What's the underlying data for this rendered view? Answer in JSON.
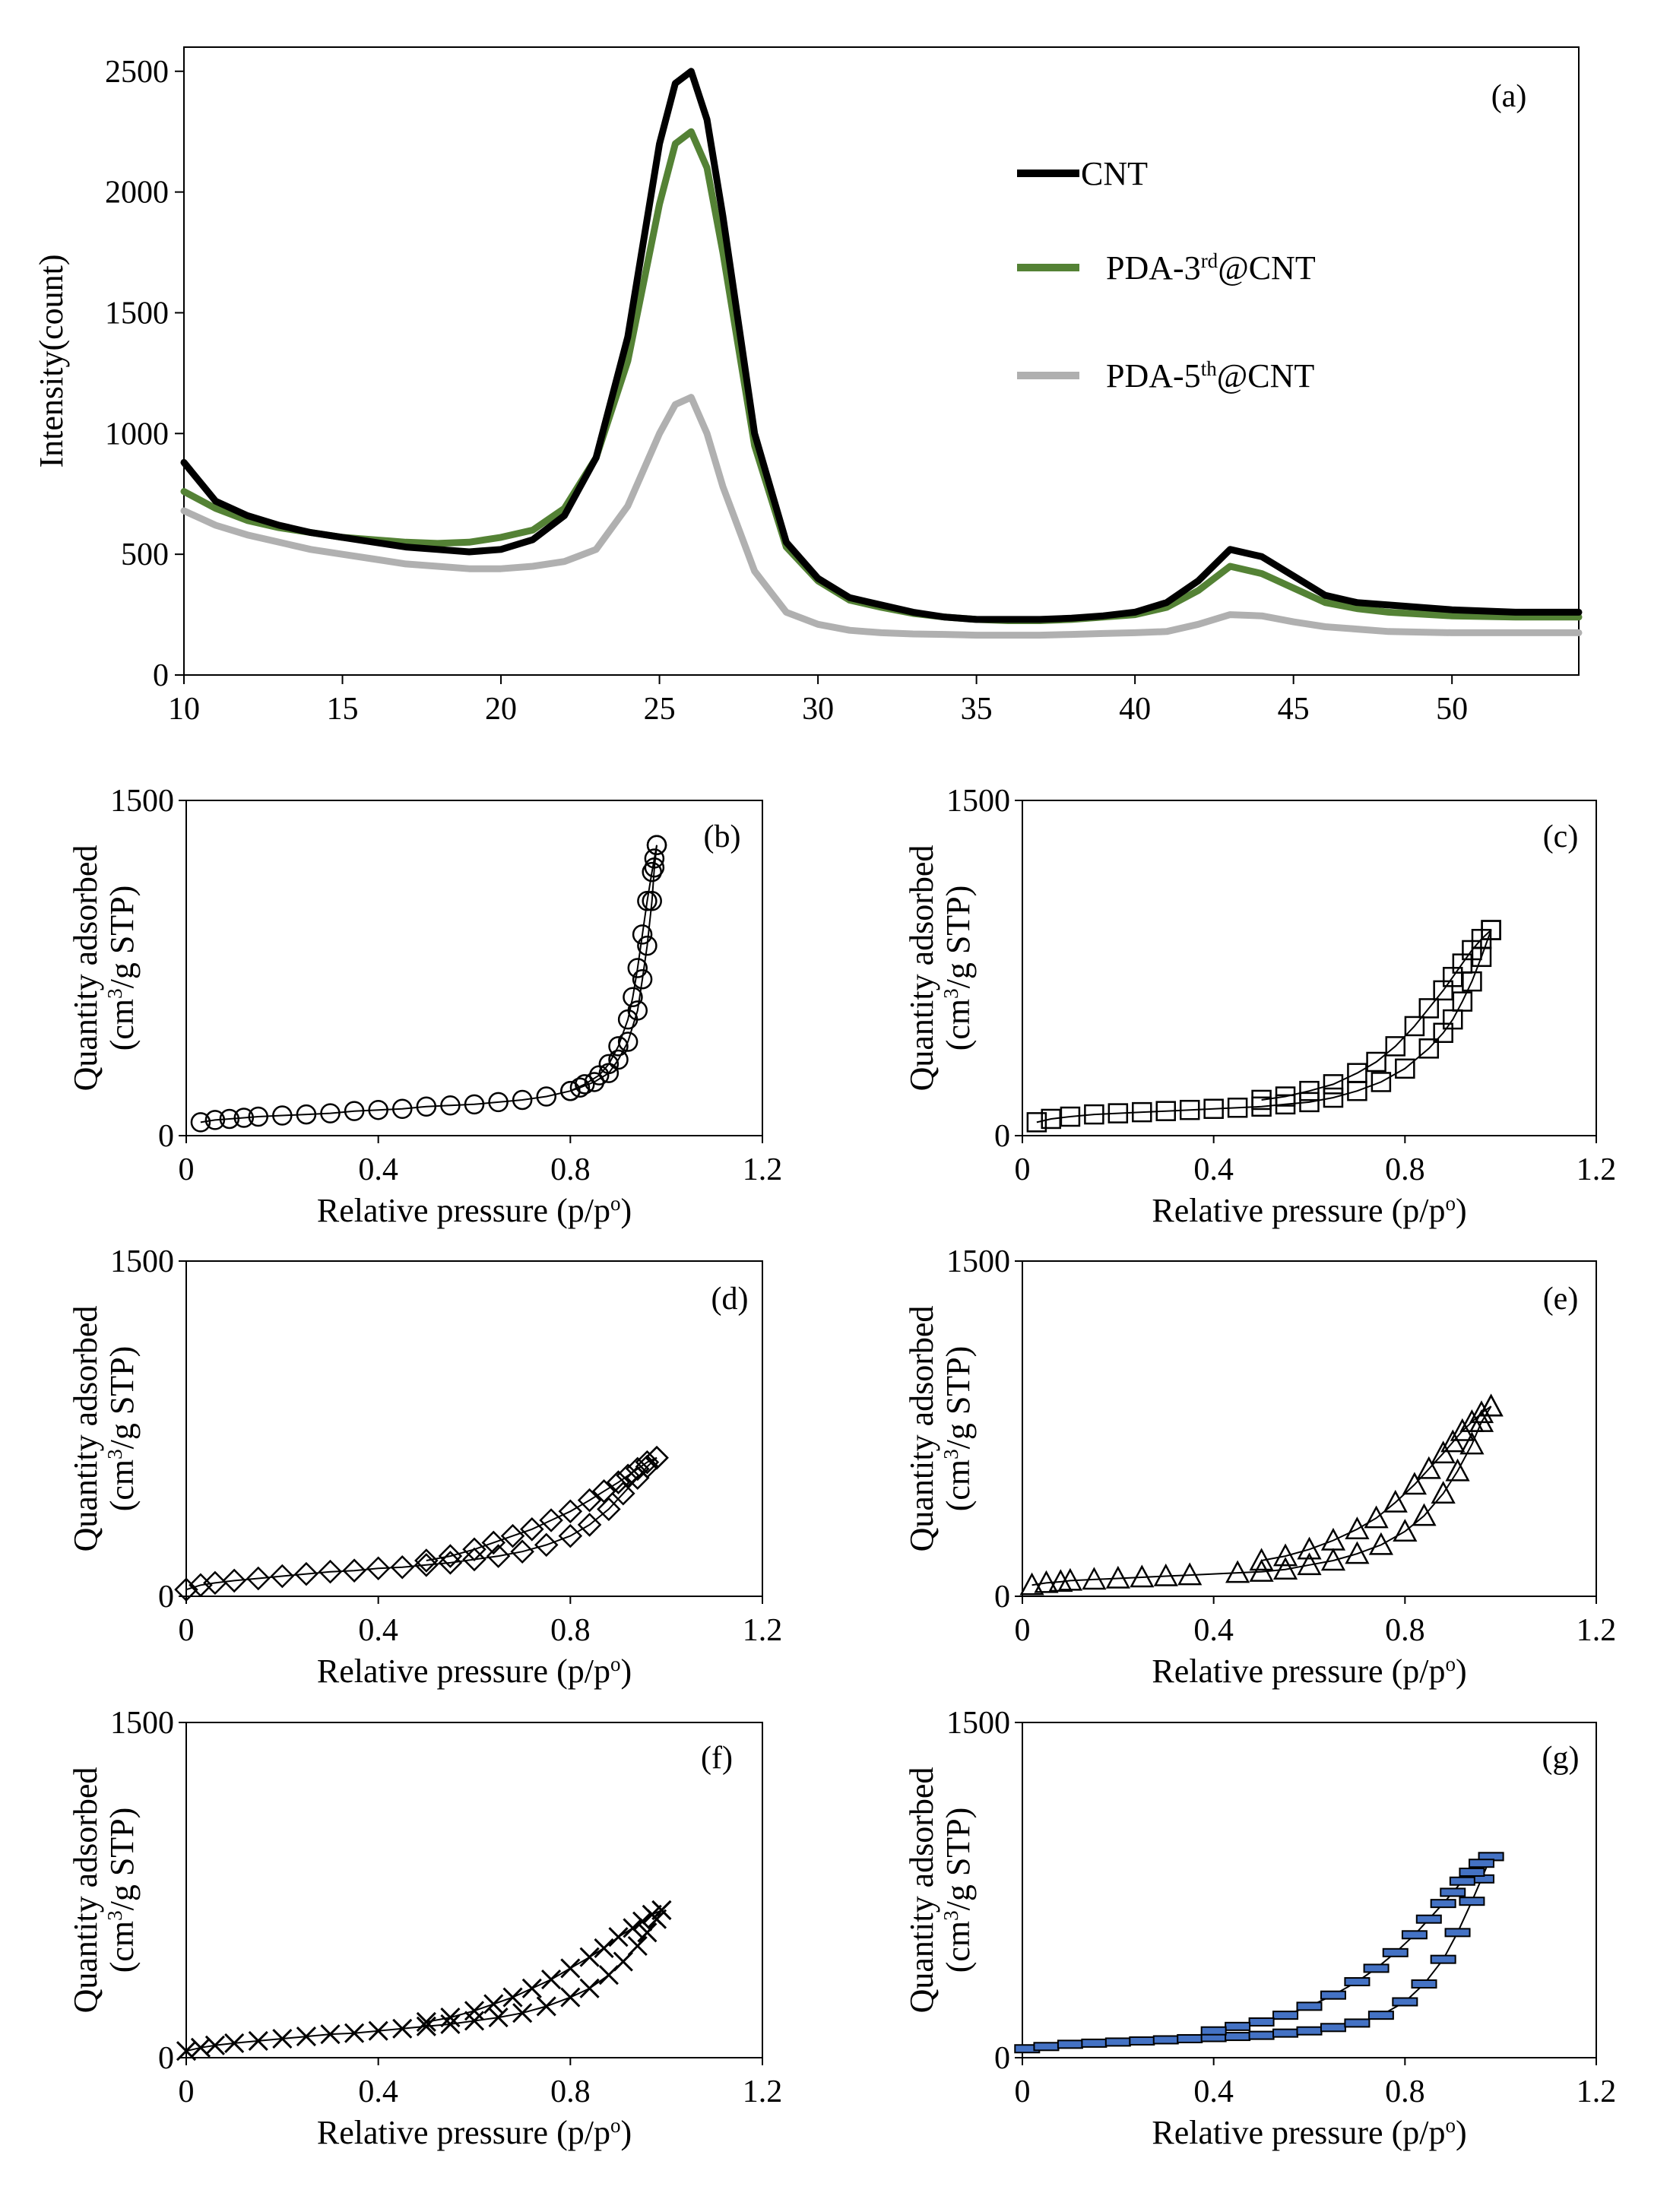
{
  "chart_data": [
    {
      "panel": "(a)",
      "type": "line",
      "title": "",
      "xlabel": "",
      "ylabel": "Intensity(count)",
      "xlim": [
        10,
        54
      ],
      "ylim": [
        0,
        2600
      ],
      "xticks": [
        10,
        15,
        20,
        25,
        30,
        35,
        40,
        45,
        50
      ],
      "yticks": [
        0,
        500,
        1000,
        1500,
        2000,
        2500
      ],
      "legend_position": "top-right",
      "series": [
        {
          "name": "CNT",
          "name_base": "CNT",
          "name_sup": "",
          "name_suffix": "",
          "color": "#000000",
          "x": [
            10,
            11,
            12,
            13,
            14,
            15,
            16,
            17,
            18,
            19,
            20,
            21,
            22,
            23,
            24,
            25,
            25.5,
            26,
            26.5,
            27,
            28,
            29,
            30,
            31,
            32,
            33,
            34,
            35,
            36,
            37,
            38,
            39,
            40,
            41,
            42,
            43,
            44,
            45,
            46,
            47,
            48,
            50,
            52,
            54
          ],
          "y": [
            880,
            720,
            660,
            620,
            590,
            570,
            550,
            530,
            520,
            510,
            520,
            560,
            660,
            900,
            1400,
            2200,
            2450,
            2500,
            2300,
            1900,
            1000,
            550,
            400,
            320,
            290,
            260,
            240,
            230,
            230,
            230,
            235,
            245,
            260,
            300,
            390,
            520,
            490,
            410,
            330,
            300,
            290,
            270,
            260,
            260
          ]
        },
        {
          "name": "PDA-3rd@CNT",
          "name_base": "PDA-3",
          "name_sup": "rd",
          "name_suffix": "@CNT",
          "color": "#548235",
          "x": [
            10,
            11,
            12,
            13,
            14,
            15,
            16,
            17,
            18,
            19,
            20,
            21,
            22,
            23,
            24,
            25,
            25.5,
            26,
            26.5,
            27,
            28,
            29,
            30,
            31,
            32,
            33,
            34,
            35,
            36,
            37,
            38,
            39,
            40,
            41,
            42,
            43,
            44,
            45,
            46,
            47,
            48,
            50,
            52,
            54
          ],
          "y": [
            760,
            690,
            640,
            610,
            590,
            570,
            560,
            550,
            545,
            550,
            570,
            600,
            690,
            900,
            1300,
            1950,
            2200,
            2250,
            2100,
            1750,
            950,
            530,
            390,
            310,
            280,
            255,
            240,
            230,
            225,
            225,
            230,
            240,
            250,
            280,
            350,
            450,
            420,
            360,
            300,
            275,
            260,
            245,
            240,
            240
          ]
        },
        {
          "name": "PDA-5th@CNT",
          "name_base": "PDA-5",
          "name_sup": "th",
          "name_suffix": "@CNT",
          "color": "#B0B0B0",
          "x": [
            10,
            11,
            12,
            13,
            14,
            15,
            16,
            17,
            18,
            19,
            20,
            21,
            22,
            23,
            24,
            25,
            25.5,
            26,
            26.5,
            27,
            28,
            29,
            30,
            31,
            32,
            33,
            34,
            35,
            36,
            37,
            38,
            39,
            40,
            41,
            42,
            43,
            44,
            45,
            46,
            47,
            48,
            50,
            52,
            54
          ],
          "y": [
            680,
            620,
            580,
            550,
            520,
            500,
            480,
            460,
            450,
            440,
            440,
            450,
            470,
            520,
            700,
            1000,
            1120,
            1150,
            1000,
            780,
            430,
            260,
            210,
            185,
            175,
            170,
            168,
            165,
            165,
            165,
            168,
            172,
            175,
            180,
            210,
            250,
            245,
            220,
            200,
            190,
            180,
            175,
            175,
            175
          ]
        }
      ]
    },
    {
      "panel": "(b)",
      "type": "scatter",
      "marker": "circle",
      "marker_color": "#000000",
      "xlabel_base": "Relative pressure (p/p",
      "xlabel_sup": "o",
      "xlabel_end": ")",
      "ylabel_line1": "Quantity adsorbed",
      "ylabel_line2_base": "(cm",
      "ylabel_line2_sup": "3",
      "ylabel_line2_end": "/g STP)",
      "xlim": [
        0,
        1.2
      ],
      "ylim": [
        0,
        1500
      ],
      "xticks": [
        "0",
        "0.4",
        "0.8",
        "1.2"
      ],
      "yticks": [
        "0",
        "1500"
      ],
      "adsorption": {
        "x": [
          0.03,
          0.06,
          0.09,
          0.12,
          0.15,
          0.2,
          0.25,
          0.3,
          0.35,
          0.4,
          0.45,
          0.5,
          0.55,
          0.6,
          0.65,
          0.7,
          0.75,
          0.8,
          0.83,
          0.86,
          0.88,
          0.9,
          0.92,
          0.93,
          0.94,
          0.95,
          0.96,
          0.97,
          0.975,
          0.98
        ],
        "y": [
          60,
          70,
          75,
          80,
          85,
          90,
          95,
          100,
          110,
          115,
          120,
          130,
          135,
          140,
          150,
          160,
          175,
          200,
          230,
          270,
          320,
          400,
          520,
          620,
          750,
          900,
          1050,
          1180,
          1240,
          1300
        ]
      },
      "desorption": {
        "x": [
          0.98,
          0.975,
          0.97,
          0.96,
          0.95,
          0.94,
          0.92,
          0.9,
          0.88,
          0.85,
          0.82,
          0.8
        ],
        "y": [
          1300,
          1200,
          1050,
          850,
          700,
          560,
          420,
          340,
          280,
          240,
          215,
          200
        ]
      }
    },
    {
      "panel": "(c)",
      "type": "scatter",
      "marker": "square",
      "marker_color": "#000000",
      "xlabel_base": "Relative pressure (p/p",
      "xlabel_sup": "o",
      "xlabel_end": ")",
      "ylabel_line1": "Quantity adsorbed",
      "ylabel_line2_base": "(cm",
      "ylabel_line2_sup": "3",
      "ylabel_line2_end": "/g STP)",
      "xlim": [
        0,
        1.2
      ],
      "ylim": [
        0,
        1500
      ],
      "xticks": [
        "0",
        "0.4",
        "0.8",
        "1.2"
      ],
      "yticks": [
        "0",
        "1500"
      ],
      "adsorption": {
        "x": [
          0.03,
          0.06,
          0.1,
          0.15,
          0.2,
          0.25,
          0.3,
          0.35,
          0.4,
          0.45,
          0.5,
          0.55,
          0.6,
          0.65,
          0.7,
          0.75,
          0.8,
          0.85,
          0.88,
          0.9,
          0.92,
          0.94,
          0.96,
          0.98
        ],
        "y": [
          60,
          75,
          85,
          95,
          100,
          105,
          110,
          115,
          120,
          125,
          130,
          140,
          150,
          170,
          200,
          240,
          300,
          390,
          460,
          520,
          600,
          690,
          800,
          920
        ]
      },
      "desorption": {
        "x": [
          0.98,
          0.96,
          0.94,
          0.92,
          0.9,
          0.88,
          0.85,
          0.82,
          0.78,
          0.74,
          0.7,
          0.65,
          0.6,
          0.55,
          0.5
        ],
        "y": [
          920,
          880,
          830,
          770,
          710,
          650,
          570,
          490,
          400,
          330,
          280,
          230,
          200,
          175,
          160
        ]
      }
    },
    {
      "panel": "(d)",
      "type": "scatter",
      "marker": "diamond",
      "marker_color": "#000000",
      "xlabel_base": "Relative pressure (p/p",
      "xlabel_sup": "o",
      "xlabel_end": ")",
      "ylabel_line1": "Quantity adsorbed",
      "ylabel_line2_base": "(cm",
      "ylabel_line2_sup": "3",
      "ylabel_line2_end": "/g STP)",
      "xlim": [
        0,
        1.2
      ],
      "ylim": [
        0,
        1500
      ],
      "xticks": [
        "0",
        "0.4",
        "0.8",
        "1.2"
      ],
      "yticks": [
        "0",
        "1500"
      ],
      "adsorption": {
        "x": [
          0.0,
          0.03,
          0.06,
          0.1,
          0.15,
          0.2,
          0.25,
          0.3,
          0.35,
          0.4,
          0.45,
          0.5,
          0.55,
          0.6,
          0.65,
          0.7,
          0.75,
          0.8,
          0.84,
          0.88,
          0.91,
          0.94,
          0.96,
          0.98
        ],
        "y": [
          30,
          50,
          60,
          70,
          80,
          90,
          100,
          110,
          115,
          125,
          130,
          140,
          150,
          165,
          180,
          200,
          230,
          270,
          320,
          390,
          460,
          530,
          580,
          620
        ]
      },
      "desorption": {
        "x": [
          0.98,
          0.96,
          0.94,
          0.92,
          0.9,
          0.87,
          0.84,
          0.8,
          0.76,
          0.72,
          0.68,
          0.64,
          0.6,
          0.55,
          0.5
        ],
        "y": [
          620,
          600,
          570,
          540,
          510,
          470,
          430,
          380,
          340,
          300,
          270,
          240,
          210,
          180,
          160
        ]
      }
    },
    {
      "panel": "(e)",
      "type": "scatter",
      "marker": "triangle",
      "marker_color": "#000000",
      "xlabel_base": "Relative pressure (p/p",
      "xlabel_sup": "o",
      "xlabel_end": ")",
      "ylabel_line1": "Quantity adsorbed",
      "ylabel_line2_base": "(cm",
      "ylabel_line2_sup": "3",
      "ylabel_line2_end": "/g STP)",
      "xlim": [
        0,
        1.2
      ],
      "ylim": [
        0,
        1500
      ],
      "xticks": [
        "0",
        "0.4",
        "0.8",
        "1.2"
      ],
      "yticks": [
        "0",
        "1500"
      ],
      "adsorption": {
        "x": [
          0.02,
          0.05,
          0.08,
          0.1,
          0.15,
          0.2,
          0.25,
          0.3,
          0.35,
          0.45,
          0.5,
          0.55,
          0.6,
          0.65,
          0.7,
          0.75,
          0.8,
          0.84,
          0.88,
          0.91,
          0.94,
          0.96,
          0.98
        ],
        "y": [
          50,
          60,
          65,
          70,
          75,
          80,
          85,
          90,
          95,
          105,
          110,
          120,
          140,
          160,
          190,
          230,
          290,
          360,
          460,
          560,
          680,
          780,
          850
        ]
      },
      "desorption": {
        "x": [
          0.98,
          0.96,
          0.94,
          0.92,
          0.9,
          0.88,
          0.85,
          0.82,
          0.78,
          0.74,
          0.7,
          0.65,
          0.6,
          0.55,
          0.5
        ],
        "y": [
          850,
          820,
          780,
          740,
          690,
          640,
          570,
          500,
          420,
          350,
          300,
          250,
          210,
          180,
          160
        ]
      }
    },
    {
      "panel": "(f)",
      "type": "scatter",
      "marker": "cross",
      "marker_color": "#000000",
      "xlabel_base": "Relative pressure (p/p",
      "xlabel_sup": "o",
      "xlabel_end": ")",
      "ylabel_line1": "Quantity adsorbed",
      "ylabel_line2_base": "(cm",
      "ylabel_line2_sup": "3",
      "ylabel_line2_end": "/g STP)",
      "xlim": [
        0,
        1.2
      ],
      "ylim": [
        0,
        1500
      ],
      "xticks": [
        "0",
        "0.4",
        "0.8",
        "1.2"
      ],
      "yticks": [
        "0",
        "1500"
      ],
      "adsorption": {
        "x": [
          0.0,
          0.03,
          0.06,
          0.1,
          0.15,
          0.2,
          0.25,
          0.3,
          0.35,
          0.4,
          0.45,
          0.5,
          0.55,
          0.6,
          0.65,
          0.7,
          0.75,
          0.8,
          0.84,
          0.88,
          0.91,
          0.94,
          0.96,
          0.98,
          0.99
        ],
        "y": [
          30,
          45,
          55,
          65,
          75,
          85,
          95,
          105,
          110,
          120,
          130,
          140,
          150,
          165,
          180,
          200,
          230,
          270,
          310,
          370,
          430,
          500,
          560,
          620,
          660
        ]
      },
      "desorption": {
        "x": [
          0.99,
          0.97,
          0.95,
          0.93,
          0.9,
          0.87,
          0.84,
          0.8,
          0.76,
          0.72,
          0.68,
          0.64,
          0.6,
          0.55,
          0.5
        ],
        "y": [
          660,
          640,
          610,
          580,
          540,
          490,
          450,
          400,
          350,
          310,
          270,
          240,
          210,
          180,
          160
        ]
      }
    },
    {
      "panel": "(g)",
      "type": "scatter",
      "marker": "dash",
      "marker_color": "#000000",
      "marker_fill": "#4472C4",
      "xlabel_base": "Relative pressure (p/p",
      "xlabel_sup": "o",
      "xlabel_end": ")",
      "ylabel_line1": "Quantity adsorbed",
      "ylabel_line2_base": "(cm",
      "ylabel_line2_sup": "3",
      "ylabel_line2_end": "/g STP)",
      "xlim": [
        0,
        1.2
      ],
      "ylim": [
        0,
        1500
      ],
      "xticks": [
        "0",
        "0.4",
        "0.8",
        "1.2"
      ],
      "yticks": [
        "0",
        "1500"
      ],
      "adsorption": {
        "x": [
          0.01,
          0.05,
          0.1,
          0.15,
          0.2,
          0.25,
          0.3,
          0.35,
          0.4,
          0.45,
          0.5,
          0.55,
          0.6,
          0.65,
          0.7,
          0.75,
          0.8,
          0.84,
          0.88,
          0.91,
          0.94,
          0.96,
          0.98
        ],
        "y": [
          40,
          50,
          60,
          65,
          70,
          75,
          80,
          85,
          90,
          95,
          100,
          110,
          120,
          135,
          155,
          190,
          250,
          330,
          440,
          560,
          700,
          800,
          900
        ]
      },
      "desorption": {
        "x": [
          0.98,
          0.96,
          0.94,
          0.92,
          0.9,
          0.88,
          0.85,
          0.82,
          0.78,
          0.74,
          0.7,
          0.65,
          0.6,
          0.55,
          0.5,
          0.45,
          0.4
        ],
        "y": [
          900,
          870,
          830,
          790,
          740,
          690,
          620,
          550,
          470,
          400,
          340,
          280,
          230,
          190,
          160,
          140,
          120
        ]
      }
    }
  ]
}
